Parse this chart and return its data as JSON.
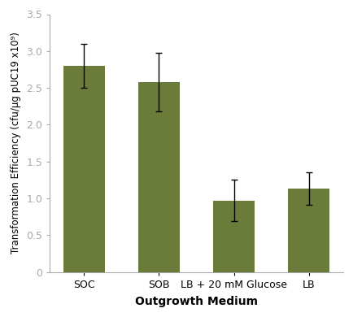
{
  "categories": [
    "SOC",
    "SOB",
    "LB + 20 mM Glucose",
    "LB"
  ],
  "values": [
    2.8,
    2.58,
    0.97,
    1.13
  ],
  "errors": [
    0.3,
    0.4,
    0.28,
    0.22
  ],
  "bar_color": "#6b7c3a",
  "bar_width": 0.55,
  "xlabel": "Outgrowth Medium",
  "ylabel": "Transformation Efficiency (cfu/μg pUC19 x10⁹)",
  "ylim": [
    0,
    3.5
  ],
  "yticks": [
    0,
    0.5,
    1.0,
    1.5,
    2.0,
    2.5,
    3.0,
    3.5
  ],
  "ytick_labels": [
    "0",
    "0.5",
    "1.0",
    "1.5",
    "2.0",
    "2.5",
    "3.0",
    "3.5"
  ],
  "xlabel_fontsize": 10,
  "ylabel_fontsize": 8.5,
  "tick_fontsize": 9,
  "error_capsize": 3,
  "error_color": "black",
  "error_linewidth": 1.0,
  "spine_color": "#aaaaaa",
  "background_color": "#ffffff"
}
